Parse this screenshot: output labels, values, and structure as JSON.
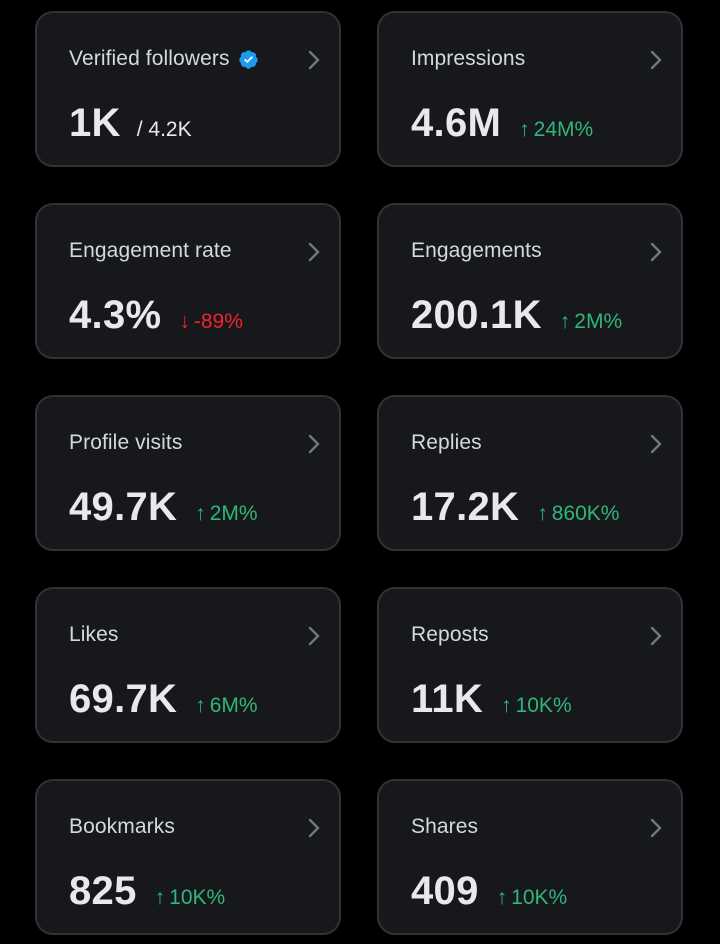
{
  "cards": [
    {
      "label": "Verified followers",
      "value": "1K",
      "total": "/ 4.2K",
      "change": "",
      "direction": "",
      "verified": true
    },
    {
      "label": "Impressions",
      "value": "4.6M",
      "total": "",
      "change": "24M%",
      "direction": "up"
    },
    {
      "label": "Engagement rate",
      "value": "4.3%",
      "total": "",
      "change": "-89%",
      "direction": "down"
    },
    {
      "label": "Engagements",
      "value": "200.1K",
      "total": "",
      "change": "2M%",
      "direction": "up"
    },
    {
      "label": "Profile visits",
      "value": "49.7K",
      "total": "",
      "change": "2M%",
      "direction": "up"
    },
    {
      "label": "Replies",
      "value": "17.2K",
      "total": "",
      "change": "860K%",
      "direction": "up"
    },
    {
      "label": "Likes",
      "value": "69.7K",
      "total": "",
      "change": "6M%",
      "direction": "up"
    },
    {
      "label": "Reposts",
      "value": "11K",
      "total": "",
      "change": "10K%",
      "direction": "up"
    },
    {
      "label": "Bookmarks",
      "value": "825",
      "total": "",
      "change": "10K%",
      "direction": "up"
    },
    {
      "label": "Shares",
      "value": "409",
      "total": "",
      "change": "10K%",
      "direction": "up"
    }
  ],
  "arrows": {
    "up": "↑",
    "down": "↓"
  },
  "colors": {
    "up": "#2fb67c",
    "down": "#f4212e",
    "verified": "#1d9bf0",
    "card_bg": "#16181c",
    "card_border": "#2f3336"
  },
  "icons": {
    "verified": "verified-badge-icon",
    "chevron": "chevron-right-icon"
  }
}
